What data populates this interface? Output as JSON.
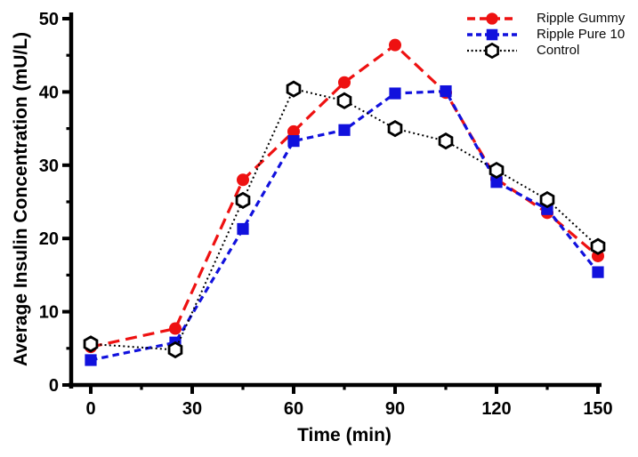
{
  "figure": {
    "background": "#ffffff",
    "text_color": "#000000"
  },
  "chart_data": {
    "type": "line",
    "title": "",
    "xlabel": "Time (min)",
    "ylabel": "Average Insulin Concentration (mU/L)",
    "x": [
      0,
      25,
      45,
      60,
      75,
      90,
      105,
      120,
      135,
      150
    ],
    "xlim": [
      0,
      150
    ],
    "ylim": [
      0,
      50
    ],
    "x_major_ticks": [
      0,
      30,
      60,
      90,
      120,
      150
    ],
    "x_minor_step": 15,
    "y_major_ticks": [
      0,
      10,
      20,
      30,
      40,
      50
    ],
    "y_minor_step": 5,
    "grid": false,
    "legend_position": "top-right",
    "series": [
      {
        "name": "Ripple Gummy",
        "color": "#ee1111",
        "marker": "circle",
        "dash": "long-dash",
        "values": [
          5.2,
          7.7,
          28.0,
          34.6,
          41.3,
          46.4,
          39.9,
          28.1,
          23.5,
          17.6
        ]
      },
      {
        "name": "Ripple Pure 10",
        "color": "#1111dd",
        "marker": "square",
        "dash": "dash",
        "values": [
          3.4,
          5.8,
          21.3,
          33.3,
          34.8,
          39.8,
          40.1,
          27.7,
          24.0,
          15.4
        ]
      },
      {
        "name": "Control",
        "color": "#000000",
        "marker": "hexagon-open",
        "dash": "dot",
        "values": [
          5.6,
          4.8,
          25.2,
          40.4,
          38.8,
          35.0,
          33.3,
          29.3,
          25.3,
          18.9
        ]
      }
    ]
  }
}
